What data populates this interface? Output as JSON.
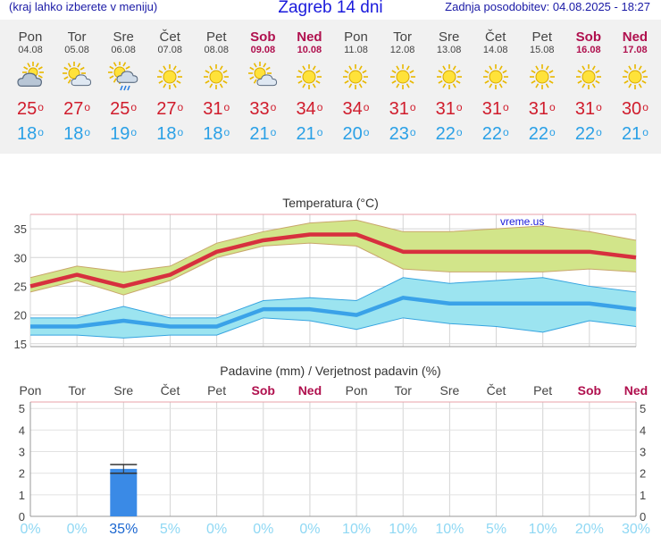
{
  "header": {
    "subtitle": "(kraj lahko izberete v meniju)",
    "title": "Zagreb 14 dni",
    "updated": "Zadnja posodobitev: 04.08.2025 - 18:27"
  },
  "colors": {
    "max_line": "#d7303e",
    "max_band": "#d2e58a",
    "min_line": "#3aa2e8",
    "min_band": "#9ce4f0",
    "bar": "#3a8ae6",
    "weekend": "#b0104e",
    "prob": "#8fd8f4"
  },
  "days": [
    {
      "name": "Pon",
      "date": "04.08",
      "icon": "partly-cloudy-icon",
      "max": "25",
      "min": "18",
      "weekend": false
    },
    {
      "name": "Tor",
      "date": "05.08",
      "icon": "sun-cloud-icon",
      "max": "27",
      "min": "18",
      "weekend": false
    },
    {
      "name": "Sre",
      "date": "06.08",
      "icon": "sun-rain-icon",
      "max": "25",
      "min": "19",
      "weekend": false
    },
    {
      "name": "Čet",
      "date": "07.08",
      "icon": "sun-icon",
      "max": "27",
      "min": "18",
      "weekend": false
    },
    {
      "name": "Pet",
      "date": "08.08",
      "icon": "sun-icon",
      "max": "31",
      "min": "18",
      "weekend": false
    },
    {
      "name": "Sob",
      "date": "09.08",
      "icon": "sun-cloud-icon",
      "max": "33",
      "min": "21",
      "weekend": true
    },
    {
      "name": "Ned",
      "date": "10.08",
      "icon": "sun-icon",
      "max": "34",
      "min": "21",
      "weekend": true
    },
    {
      "name": "Pon",
      "date": "11.08",
      "icon": "sun-icon",
      "max": "34",
      "min": "20",
      "weekend": false
    },
    {
      "name": "Tor",
      "date": "12.08",
      "icon": "sun-icon",
      "max": "31",
      "min": "23",
      "weekend": false
    },
    {
      "name": "Sre",
      "date": "13.08",
      "icon": "sun-icon",
      "max": "31",
      "min": "22",
      "weekend": false
    },
    {
      "name": "Čet",
      "date": "14.08",
      "icon": "sun-icon",
      "max": "31",
      "min": "22",
      "weekend": false
    },
    {
      "name": "Pet",
      "date": "15.08",
      "icon": "sun-icon",
      "max": "31",
      "min": "22",
      "weekend": false
    },
    {
      "name": "Sob",
      "date": "16.08",
      "icon": "sun-icon",
      "max": "31",
      "min": "22",
      "weekend": true
    },
    {
      "name": "Ned",
      "date": "17.08",
      "icon": "sun-icon",
      "max": "30",
      "min": "21",
      "weekend": true
    }
  ],
  "chart_data": [
    {
      "type": "line",
      "title": "Temperatura (°C)",
      "watermark": "vreme.us",
      "x": [
        "Pon",
        "Tor",
        "Sre",
        "Čet",
        "Pet",
        "Sob",
        "Ned",
        "Pon",
        "Tor",
        "Sre",
        "Čet",
        "Pet",
        "Sob",
        "Ned"
      ],
      "ylim": [
        14.5,
        37.5
      ],
      "yticks": [
        15,
        20,
        25,
        30,
        35
      ],
      "grid": true,
      "series": [
        {
          "values": [
            25,
            27,
            25,
            27,
            31,
            33,
            34,
            34,
            31,
            31,
            31,
            31,
            31,
            30
          ],
          "band_high": [
            26.5,
            28.5,
            27.5,
            28.5,
            32.5,
            34.5,
            36,
            36.5,
            34.5,
            34.5,
            35,
            35.5,
            34.5,
            33
          ],
          "band_low": [
            24,
            26,
            23.5,
            26,
            30,
            32,
            32.5,
            32,
            28,
            27.5,
            27.5,
            27.5,
            28,
            27.5
          ]
        },
        {
          "values": [
            18,
            18,
            19,
            18,
            18,
            21,
            21,
            20,
            23,
            22,
            22,
            22,
            22,
            21
          ],
          "band_high": [
            19.5,
            19.5,
            21.5,
            19.5,
            19.5,
            22.5,
            23,
            22.5,
            26.5,
            25.5,
            26,
            26.5,
            25,
            24
          ],
          "band_low": [
            16.5,
            16.5,
            16,
            16.5,
            16.5,
            19.5,
            19,
            17.5,
            19.5,
            18.5,
            18,
            17,
            19,
            18
          ]
        }
      ]
    },
    {
      "type": "bar",
      "title": "Padavine (mm) / Verjetnost padavin (%)",
      "categories": [
        "Pon",
        "Tor",
        "Sre",
        "Čet",
        "Pet",
        "Sob",
        "Ned",
        "Pon",
        "Tor",
        "Sre",
        "Čet",
        "Pet",
        "Sob",
        "Ned"
      ],
      "weekend": [
        false,
        false,
        false,
        false,
        false,
        true,
        true,
        false,
        false,
        false,
        false,
        false,
        true,
        true
      ],
      "values": [
        0,
        0,
        2.2,
        0,
        0,
        0,
        0,
        0,
        0,
        0,
        0,
        0,
        0,
        0
      ],
      "errors": [
        null,
        null,
        [
          2.0,
          2.4
        ],
        null,
        null,
        null,
        null,
        null,
        null,
        null,
        null,
        null,
        null,
        null
      ],
      "probabilities": [
        "0%",
        "0%",
        "35%",
        "5%",
        "0%",
        "0%",
        "0%",
        "10%",
        "10%",
        "10%",
        "5%",
        "10%",
        "20%",
        "30%"
      ],
      "probability_strong": [
        false,
        false,
        true,
        false,
        false,
        false,
        false,
        false,
        false,
        false,
        false,
        false,
        false,
        false
      ],
      "ylim": [
        0,
        5.3
      ],
      "yticks": [
        0,
        1,
        2,
        3,
        4,
        5
      ]
    }
  ]
}
